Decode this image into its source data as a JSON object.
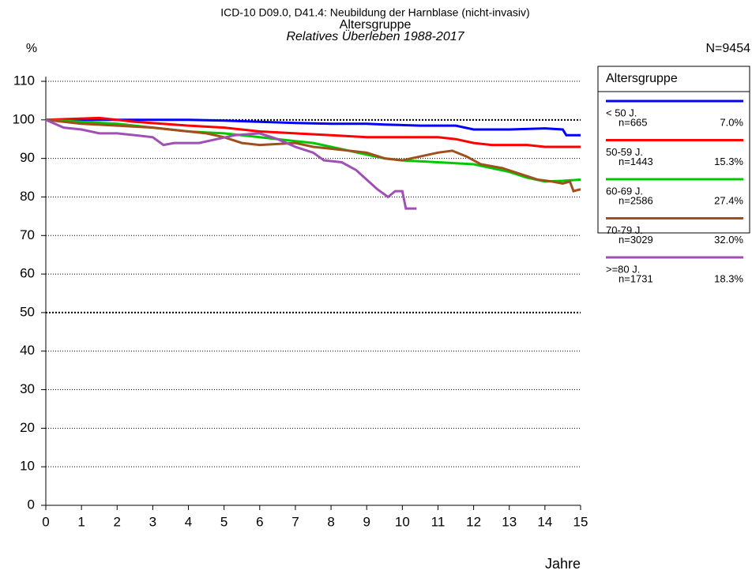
{
  "chart_data": {
    "type": "line",
    "title": "ICD-10 D09.0, D41.4: Neubildung der Harnblase (nicht-invasiv)",
    "subtitle": "Altersgruppe",
    "subtitle2": "Relatives Überleben 1988-2017",
    "y_label": "%",
    "x_label": "Jahre",
    "total": "N=9454",
    "legend_title": "Altersgruppe",
    "xlim": [
      0,
      15
    ],
    "ylim": [
      0,
      110
    ],
    "xticks": [
      0,
      1,
      2,
      3,
      4,
      5,
      6,
      7,
      8,
      9,
      10,
      11,
      12,
      13,
      14,
      15
    ],
    "yticks": [
      0,
      10,
      20,
      30,
      40,
      50,
      60,
      70,
      80,
      90,
      100,
      110
    ],
    "grid": true,
    "strong_gridlines": [
      50,
      100
    ],
    "series": [
      {
        "name": "< 50 J.",
        "n": "n=665",
        "share": "7.0%",
        "color": "#0000ff",
        "x": [
          0,
          1,
          2,
          3,
          4,
          5,
          6,
          7,
          8,
          9,
          9.5,
          10.5,
          11.5,
          12,
          13,
          14,
          14.5,
          14.6,
          15
        ],
        "values": [
          100,
          100,
          100,
          100,
          100,
          99.8,
          99.5,
          99.2,
          99,
          99,
          98.8,
          98.5,
          98.5,
          97.5,
          97.5,
          97.8,
          97.5,
          96,
          96
        ]
      },
      {
        "name": "50-59 J.",
        "n": "n=1443",
        "share": "15.3%",
        "color": "#ff0000",
        "x": [
          0,
          1.5,
          2.5,
          4,
          5,
          6,
          7,
          8,
          9,
          10,
          11,
          11.5,
          12,
          12.5,
          13.5,
          14,
          15
        ],
        "values": [
          100,
          100.5,
          99.5,
          98.5,
          98,
          97,
          96.5,
          96,
          95.5,
          95.5,
          95.5,
          95,
          94,
          93.5,
          93.5,
          93,
          93
        ]
      },
      {
        "name": "60-69 J.",
        "n": "n=2586",
        "share": "27.4%",
        "color": "#00c800",
        "x": [
          0,
          1,
          2,
          3,
          4,
          5,
          6,
          7,
          7.5,
          8,
          8.5,
          9,
          9.5,
          10,
          11,
          12,
          13,
          13.5,
          14,
          14.5,
          15
        ],
        "values": [
          100,
          99.5,
          99,
          98,
          97,
          96.5,
          95.5,
          94.5,
          94,
          93,
          92,
          91,
          90,
          89.5,
          89,
          88.5,
          86.5,
          85,
          84,
          84.2,
          84.5
        ]
      },
      {
        "name": "70-79 J.",
        "n": "n=3029",
        "share": "32.0%",
        "color": "#a0501e",
        "x": [
          0,
          1,
          2,
          3,
          4,
          4.5,
          5,
          5.5,
          6,
          7,
          7.5,
          8,
          9,
          9.5,
          10,
          10.5,
          11,
          11.4,
          11.8,
          12.2,
          12.8,
          13.3,
          13.8,
          14.2,
          14.5,
          14.7,
          14.8,
          15
        ],
        "values": [
          100,
          99,
          98.5,
          98,
          97,
          96.5,
          95.5,
          94,
          93.5,
          94,
          93,
          92.5,
          91.5,
          90,
          89.5,
          90.5,
          91.5,
          92,
          90.5,
          88.5,
          87.5,
          86,
          84.5,
          84,
          83.5,
          84,
          81.5,
          82
        ]
      },
      {
        "name": ">=80 J.",
        "n": "n=1731",
        "share": "18.3%",
        "color": "#a050b4",
        "x": [
          0,
          0.5,
          1,
          1.5,
          2,
          2.5,
          3,
          3.3,
          3.6,
          4.3,
          4.8,
          5.3,
          6,
          6.5,
          7,
          7.5,
          7.8,
          8.3,
          8.7,
          9,
          9.3,
          9.6,
          9.8,
          10,
          10.1,
          10.4
        ],
        "values": [
          100,
          98,
          97.5,
          96.5,
          96.5,
          96,
          95.5,
          93.5,
          94,
          94,
          95,
          96,
          96.5,
          95,
          93,
          91.5,
          89.5,
          89,
          87,
          84.5,
          82,
          80,
          81.5,
          81.5,
          77,
          77
        ]
      }
    ]
  }
}
